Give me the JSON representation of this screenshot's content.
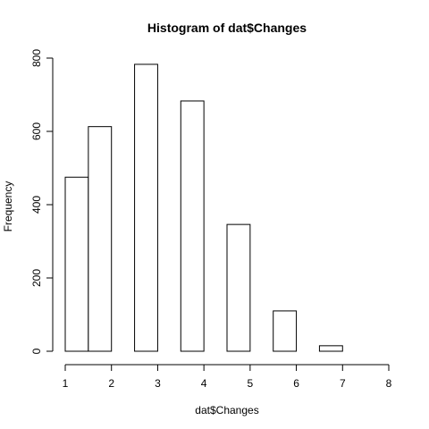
{
  "chart_data": {
    "type": "bar",
    "title": "Histogram of dat$Changes",
    "xlabel": "dat$Changes",
    "ylabel": "Frequency",
    "bins": [
      {
        "from": 1.0,
        "to": 1.5,
        "value": 475
      },
      {
        "from": 1.5,
        "to": 2.0,
        "value": 613
      },
      {
        "from": 2.5,
        "to": 3.0,
        "value": 783
      },
      {
        "from": 3.5,
        "to": 4.0,
        "value": 683
      },
      {
        "from": 4.5,
        "to": 5.0,
        "value": 346
      },
      {
        "from": 5.5,
        "to": 6.0,
        "value": 110
      },
      {
        "from": 6.5,
        "to": 7.0,
        "value": 15
      },
      {
        "from": 7.0,
        "to": 8.0,
        "value": 0
      }
    ],
    "xlim": [
      1,
      8
    ],
    "ylim": [
      0,
      800
    ],
    "x_ticks": [
      "1",
      "2",
      "3",
      "4",
      "5",
      "6",
      "7",
      "8"
    ],
    "y_ticks": [
      "0",
      "200",
      "400",
      "600",
      "800"
    ],
    "grid": false,
    "legend": "none"
  }
}
